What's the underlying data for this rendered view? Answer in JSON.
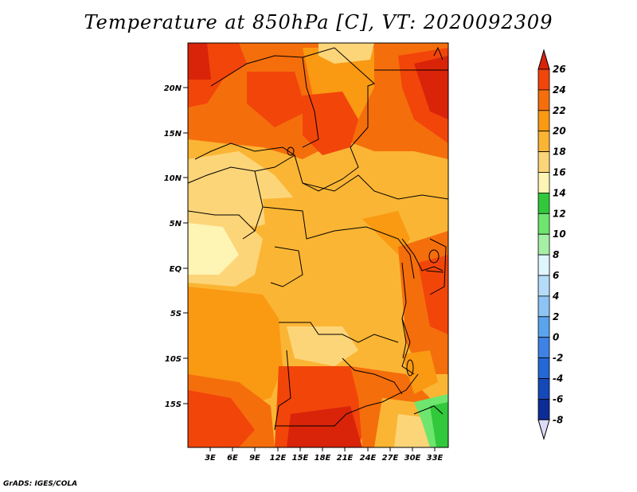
{
  "title": "Temperature at 850hPa [C], VT: 2020092309",
  "credit": "GrADS: IGES/COLA",
  "lat_labels": [
    "20N",
    "15N",
    "10N",
    "5N",
    "EQ",
    "5S",
    "10S",
    "15S"
  ],
  "lon_labels": [
    "3E",
    "6E",
    "9E",
    "12E",
    "15E",
    "18E",
    "21E",
    "24E",
    "27E",
    "30E",
    "33E"
  ],
  "colorbar": {
    "levels": [
      "26",
      "24",
      "22",
      "20",
      "18",
      "16",
      "14",
      "12",
      "10",
      "8",
      "6",
      "4",
      "2",
      "0",
      "-2",
      "-4",
      "-6",
      "-8"
    ],
    "colors": [
      "#e8230a",
      "#f2450a",
      "#f56e0c",
      "#fa9912",
      "#fbb534",
      "#fdd579",
      "#fef4b4",
      "#32c83c",
      "#6ee66e",
      "#a6f0a6",
      "#e0f6ff",
      "#b4dcfa",
      "#8ec4f5",
      "#5aa4ee",
      "#3e82e6",
      "#2468d6",
      "#1548b9",
      "#0c2c96",
      "#00005a"
    ],
    "top_color": "#d9240a",
    "bottom_color": "#dcdcfa"
  },
  "field_colors": {
    "t26": "#d9240a",
    "t24": "#f2450a",
    "t22": "#f56e0c",
    "t20": "#fa9912",
    "t18": "#fbb534",
    "t16": "#fdd579",
    "t14": "#fef4b4",
    "t12": "#32c83c",
    "t10": "#6ee66e"
  }
}
